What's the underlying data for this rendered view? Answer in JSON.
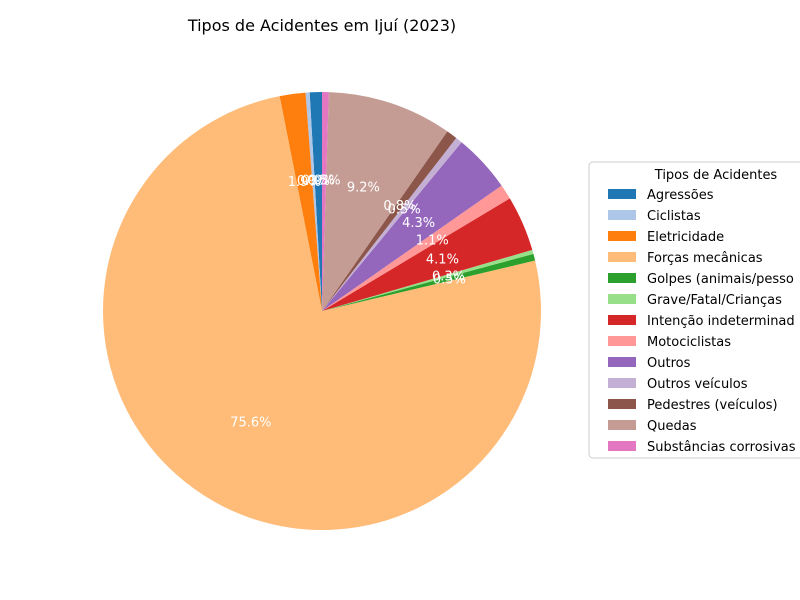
{
  "chart_data": {
    "type": "pie",
    "title": "Tipos de Acidentes em Ijuí (2023)",
    "legend_title": "Tipos de Acidentes",
    "legend_position": "right",
    "categories": [
      "Agressões",
      "Ciclistas",
      "Eletricidade",
      "Forças mecânicas",
      "Golpes (animais/pessoas)",
      "Grave/Fatal/Crianças",
      "Intenção indeterminada",
      "Motociclistas",
      "Outros",
      "Outros veículos",
      "Pedestres (veículos)",
      "Quedas",
      "Substâncias corrosivas"
    ],
    "legend_labels": [
      "Agressões",
      "Ciclistas",
      "Eletricidade",
      "Forças mecânicas",
      "Golpes (animais/pesso",
      "Grave/Fatal/Crianças",
      "Intenção indeterminad",
      "Motociclistas",
      "Outros",
      "Outros veículos",
      "Pedestres (veículos)",
      "Quedas",
      "Substâncias corrosivas"
    ],
    "values": [
      0.9,
      0.3,
      1.9,
      75.6,
      0.5,
      0.3,
      4.1,
      1.1,
      4.3,
      0.5,
      0.8,
      9.2,
      0.5
    ],
    "labels": [
      "0.9%",
      "0.3%",
      "1.9%",
      "75.6%",
      "0.5%",
      "0.3%",
      "4.1%",
      "1.1%",
      "4.3%",
      "0.5%",
      "0.8%",
      "9.2%",
      "0.5%"
    ],
    "colors": [
      "#1f77b4",
      "#aec7e8",
      "#ff7f0e",
      "#ffbb78",
      "#2ca02c",
      "#98df8a",
      "#d62728",
      "#ff9896",
      "#9467bd",
      "#c5b0d5",
      "#8c564b",
      "#c49c94",
      "#e377c2"
    ],
    "start_angle_deg": 90,
    "direction": "counterclockwise"
  }
}
